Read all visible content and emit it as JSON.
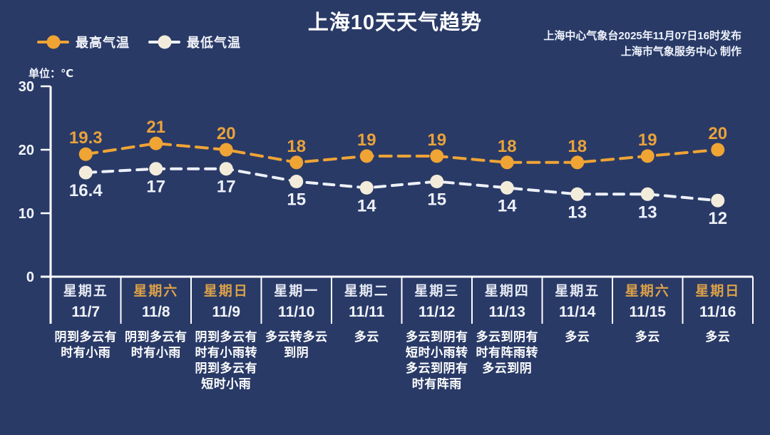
{
  "header": {
    "title": "上海10天天气趋势",
    "publisher_line1": "上海中心气象台2025年11月07日16时发布",
    "publisher_line2": "上海市气象服务中心  制作",
    "unit_label": "单位：℃"
  },
  "legend": {
    "high_label": "最高气温",
    "low_label": "最低气温"
  },
  "colors": {
    "background": "#293A67",
    "high_series": "#F0A434",
    "high_value_label": "#E9A23B",
    "low_dot": "#F3ECDB",
    "low_line": "#EDF1F8",
    "low_value_label": "#EDF0F8",
    "axis": "#FFFFFF",
    "weekend_text": "#DDA147",
    "weekday_text": "#E6EAF4",
    "date_text": "#F3F5FB"
  },
  "chart_data": {
    "type": "line",
    "title": "上海10天天气趋势",
    "ylabel": "℃",
    "ylim": [
      0,
      30
    ],
    "y_ticks": [
      30,
      20,
      10,
      0
    ],
    "grid": false,
    "legend_position": "top-left",
    "line_style": "dashed",
    "categories": [
      "11/7",
      "11/8",
      "11/9",
      "11/10",
      "11/11",
      "11/12",
      "11/13",
      "11/14",
      "11/15",
      "11/16"
    ],
    "series": [
      {
        "id": "high",
        "name": "最高气温",
        "values": [
          19.3,
          21,
          20,
          18,
          19,
          19,
          18,
          18,
          19,
          20
        ],
        "labels": [
          "19.3",
          "21",
          "20",
          "18",
          "19",
          "19",
          "18",
          "18",
          "19",
          "20"
        ],
        "label_position": "above"
      },
      {
        "id": "low",
        "name": "最低气温",
        "values": [
          16.4,
          17,
          17,
          15,
          14,
          15,
          14,
          13,
          13,
          12
        ],
        "labels": [
          "16.4",
          "17",
          "17",
          "15",
          "14",
          "15",
          "14",
          "13",
          "13",
          "12"
        ],
        "label_position": "below"
      }
    ]
  },
  "days": [
    {
      "weekday": "星期五",
      "date": "11/7",
      "weather": "阴到多云有时有小雨",
      "weekend": false
    },
    {
      "weekday": "星期六",
      "date": "11/8",
      "weather": "阴到多云有时有小雨",
      "weekend": true
    },
    {
      "weekday": "星期日",
      "date": "11/9",
      "weather": "阴到多云有时有小雨转阴到多云有短时小雨",
      "weekend": true
    },
    {
      "weekday": "星期一",
      "date": "11/10",
      "weather": "多云转多云到阴",
      "weekend": false
    },
    {
      "weekday": "星期二",
      "date": "11/11",
      "weather": "多云",
      "weekend": false
    },
    {
      "weekday": "星期三",
      "date": "11/12",
      "weather": "多云到阴有短时小雨转多云到阴有时有阵雨",
      "weekend": false
    },
    {
      "weekday": "星期四",
      "date": "11/13",
      "weather": "多云到阴有时有阵雨转多云到阴",
      "weekend": false
    },
    {
      "weekday": "星期五",
      "date": "11/14",
      "weather": "多云",
      "weekend": false
    },
    {
      "weekday": "星期六",
      "date": "11/15",
      "weather": "多云",
      "weekend": true
    },
    {
      "weekday": "星期日",
      "date": "11/16",
      "weather": "多云",
      "weekend": true
    }
  ]
}
